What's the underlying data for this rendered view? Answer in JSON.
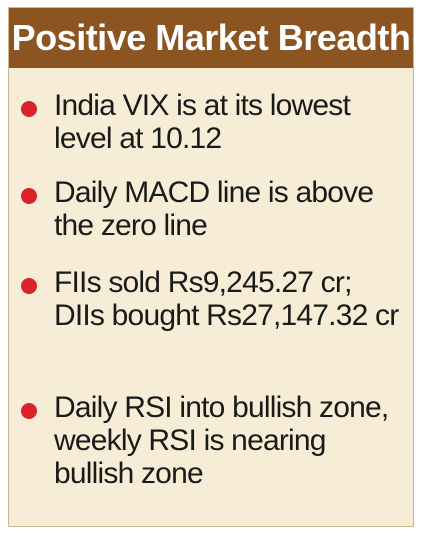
{
  "title": "Positive Market Breadth",
  "items": [
    {
      "text": "India VIX is at its lowest level at 10.12"
    },
    {
      "text": "Daily MACD line is above the zero line"
    },
    {
      "text": "FIIs sold Rs9,245.27 cr; DIIs bought Rs27,147.32 cr"
    },
    {
      "text": "Daily RSI into bullish zone, weekly RSI is nearing bullish zone"
    }
  ],
  "colors": {
    "header_background": "#8b5421",
    "card_background": "#f7edd6",
    "bullet": "#d8232a",
    "text": "#1a1a1a"
  }
}
